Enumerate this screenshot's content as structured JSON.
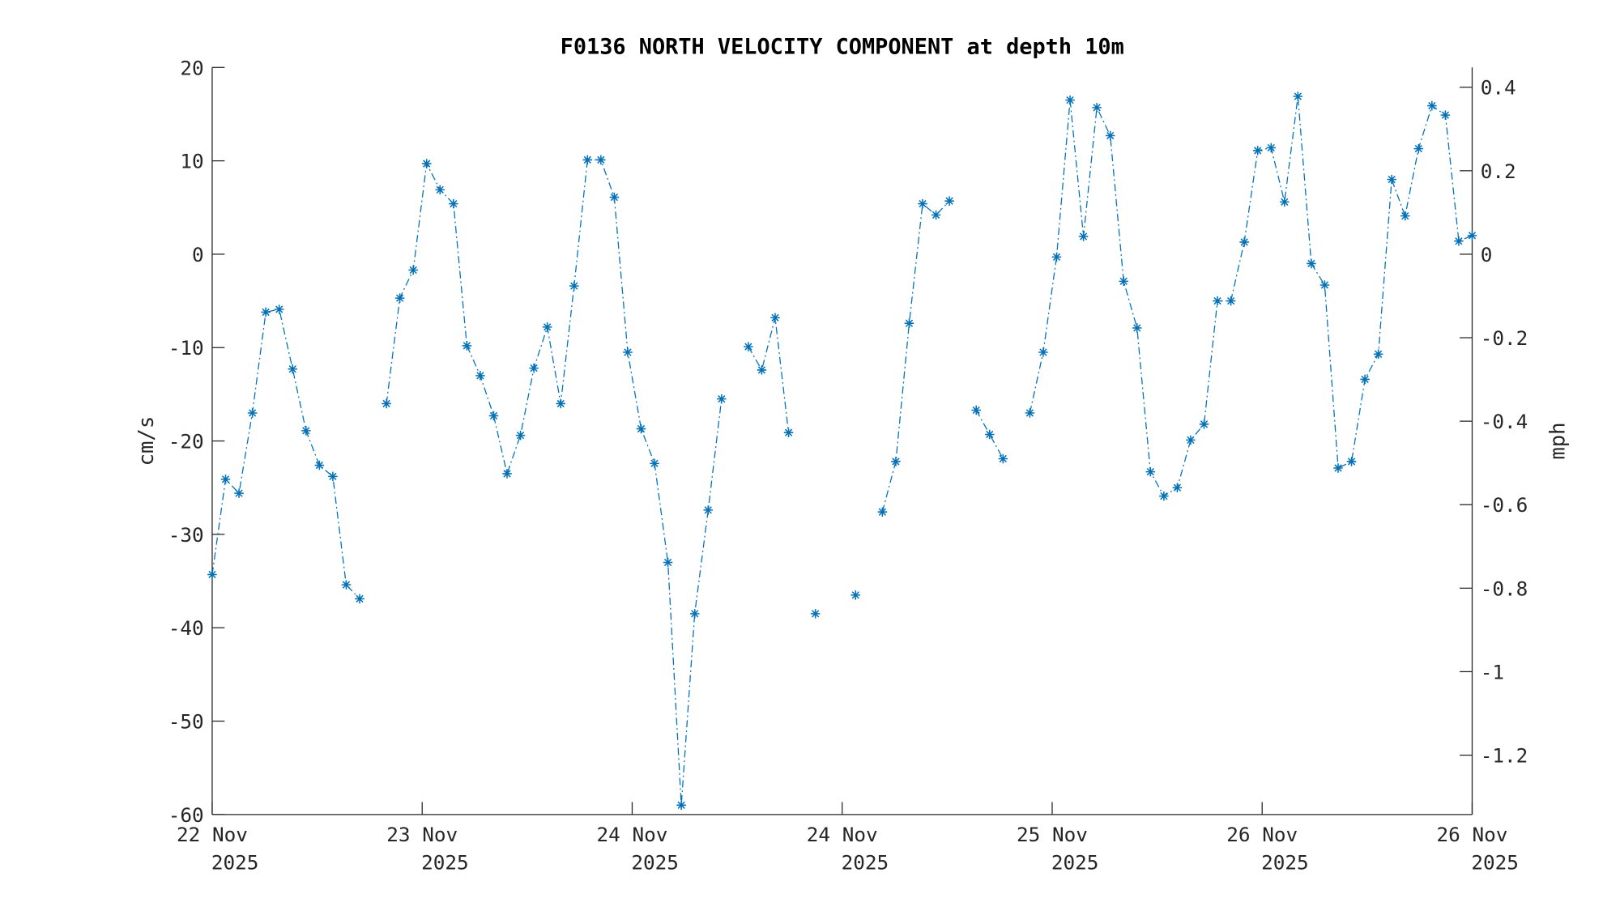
{
  "chart_data": {
    "type": "line",
    "title": "F0136 NORTH VELOCITY COMPONENT at depth 10m",
    "xlabel": "",
    "ylabel": "cm/s",
    "ylabel_right": "mph",
    "xlim": [
      0,
      94
    ],
    "ylim": [
      -60,
      20
    ],
    "y_ticks": [
      20,
      10,
      0,
      -10,
      -20,
      -30,
      -40,
      -50,
      -60
    ],
    "y_tick_labels": [
      "20",
      "10",
      "0",
      "-10",
      "-20",
      "-30",
      "-40",
      "-50",
      "-60"
    ],
    "y2_ticks": [
      0.4,
      0.2,
      0,
      -0.2,
      -0.4,
      -0.6,
      -0.8,
      -1,
      -1.2
    ],
    "y2_tick_labels": [
      "0.4",
      "0.2",
      "0",
      "-0.2",
      "-0.4",
      "-0.6",
      "-0.8",
      "-1",
      "-1.2"
    ],
    "cms_to_mph": 0.0223694,
    "x_ticks": [
      0,
      15.667,
      31.333,
      47,
      62.667,
      78.333,
      94
    ],
    "x_tick_labels": [
      [
        "22 Nov",
        "2025"
      ],
      [
        "23 Nov",
        "2025"
      ],
      [
        "24 Nov",
        "2025"
      ],
      [
        "24 Nov",
        "2025"
      ],
      [
        "25 Nov",
        "2025"
      ],
      [
        "26 Nov",
        "2025"
      ],
      [
        "26 Nov",
        "2025"
      ]
    ],
    "grid": false,
    "series": [
      {
        "name": "North velocity",
        "color": "#0072BD",
        "line_style": "dash-dot",
        "marker": "asterisk",
        "values": [
          -34.3,
          -24.1,
          -25.6,
          -17,
          -6.2,
          -5.9,
          -12.3,
          -18.9,
          -22.6,
          -23.8,
          -35.4,
          -36.9,
          null,
          -16,
          -4.7,
          -1.7,
          9.7,
          6.9,
          5.4,
          -9.8,
          -13,
          -17.3,
          -23.5,
          -19.4,
          -12.2,
          -7.8,
          -16,
          -3.4,
          10.1,
          10.1,
          6.1,
          -10.5,
          -18.7,
          -22.4,
          -33,
          -59,
          -38.5,
          -27.4,
          -15.5,
          null,
          -9.9,
          -12.4,
          -6.8,
          -19.1,
          null,
          -38.5,
          null,
          null,
          -36.5,
          null,
          -27.6,
          -22.2,
          -7.4,
          5.4,
          4.2,
          5.7,
          null,
          -16.7,
          -19.3,
          -21.9,
          null,
          -17,
          -10.5,
          -0.3,
          16.5,
          1.9,
          15.7,
          12.7,
          -2.9,
          -7.9,
          -23.3,
          -25.9,
          -25,
          -19.9,
          -18.2,
          -5,
          -5,
          1.3,
          11.1,
          11.4,
          5.6,
          16.9,
          -1,
          -3.3,
          -22.9,
          -22.2,
          -13.4,
          -10.7,
          8,
          4.1,
          11.3,
          15.9,
          14.9,
          1.4,
          2
        ]
      }
    ]
  }
}
